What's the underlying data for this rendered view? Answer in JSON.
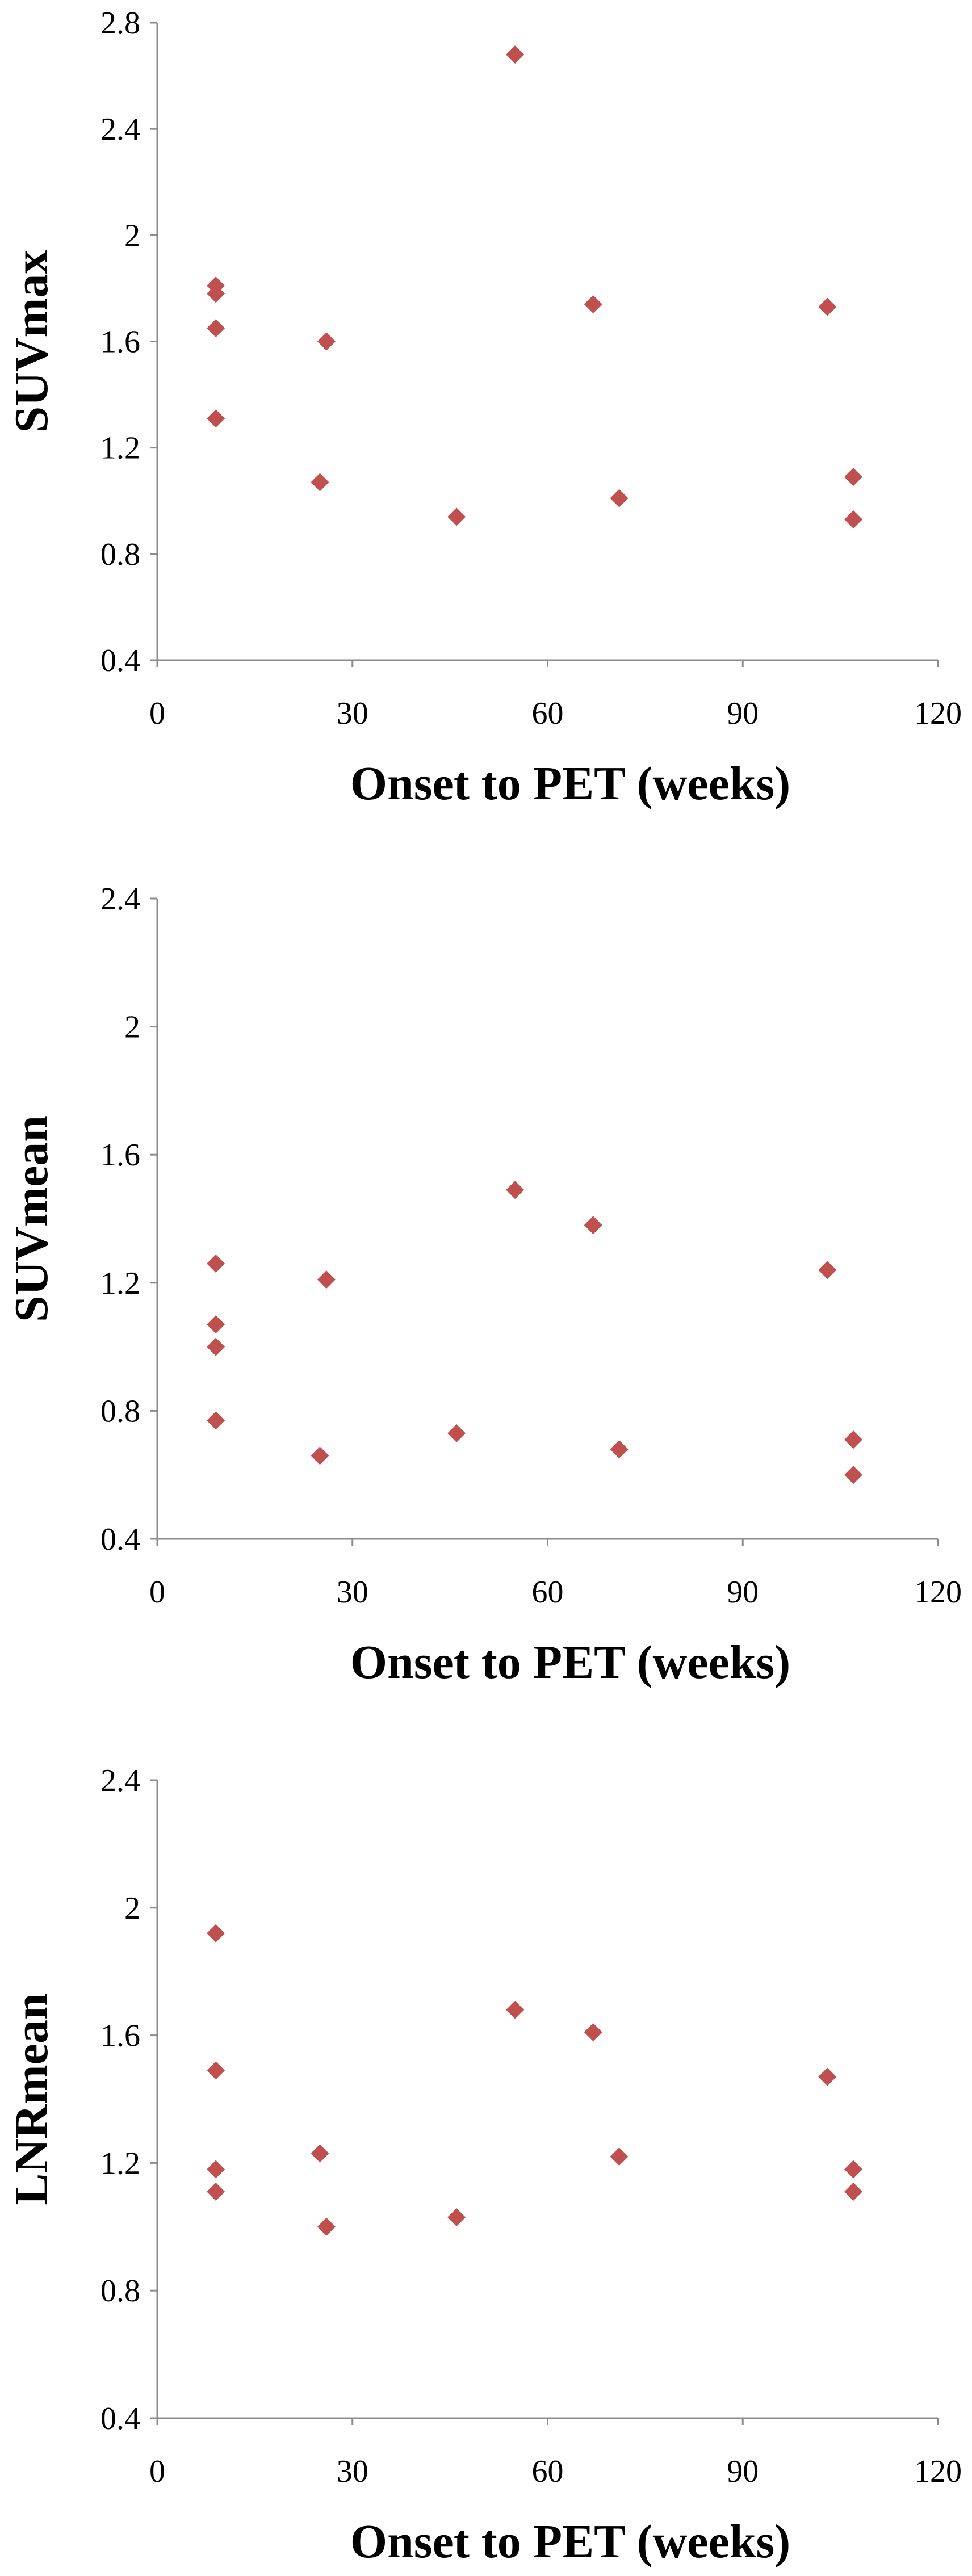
{
  "chart_data": [
    {
      "type": "scatter",
      "title": "",
      "xlabel": "Onset to PET (weeks)",
      "ylabel": "SUVmax",
      "xlim": [
        0,
        120
      ],
      "ylim": [
        0.4,
        2.8
      ],
      "xticks": [
        0,
        30,
        60,
        90,
        120
      ],
      "yticks": [
        0.4,
        0.8,
        1.2,
        1.6,
        2,
        2.4,
        2.8
      ],
      "grid": false,
      "marker_color": "#c0504d",
      "series": [
        {
          "points": [
            {
              "x": 9,
              "y": 1.81
            },
            {
              "x": 9,
              "y": 1.78
            },
            {
              "x": 9,
              "y": 1.65
            },
            {
              "x": 9,
              "y": 1.31
            },
            {
              "x": 25,
              "y": 1.07
            },
            {
              "x": 26,
              "y": 1.6
            },
            {
              "x": 46,
              "y": 0.94
            },
            {
              "x": 55,
              "y": 2.68
            },
            {
              "x": 67,
              "y": 1.74
            },
            {
              "x": 71,
              "y": 1.01
            },
            {
              "x": 103,
              "y": 1.73
            },
            {
              "x": 107,
              "y": 1.09
            },
            {
              "x": 107,
              "y": 0.93
            }
          ]
        }
      ]
    },
    {
      "type": "scatter",
      "title": "",
      "xlabel": "Onset to PET (weeks)",
      "ylabel": "SUVmean",
      "xlim": [
        0,
        120
      ],
      "ylim": [
        0.4,
        2.4
      ],
      "xticks": [
        0,
        30,
        60,
        90,
        120
      ],
      "yticks": [
        0.4,
        0.8,
        1.2,
        1.6,
        2,
        2.4
      ],
      "grid": false,
      "marker_color": "#c0504d",
      "series": [
        {
          "points": [
            {
              "x": 9,
              "y": 1.26
            },
            {
              "x": 9,
              "y": 1.07
            },
            {
              "x": 9,
              "y": 1.0
            },
            {
              "x": 9,
              "y": 0.77
            },
            {
              "x": 25,
              "y": 0.66
            },
            {
              "x": 26,
              "y": 1.21
            },
            {
              "x": 46,
              "y": 0.73
            },
            {
              "x": 55,
              "y": 1.49
            },
            {
              "x": 67,
              "y": 1.38
            },
            {
              "x": 71,
              "y": 0.68
            },
            {
              "x": 103,
              "y": 1.24
            },
            {
              "x": 107,
              "y": 0.71
            },
            {
              "x": 107,
              "y": 0.6
            }
          ]
        }
      ]
    },
    {
      "type": "scatter",
      "title": "",
      "xlabel": "Onset to PET (weeks)",
      "ylabel": "LNRmean",
      "xlim": [
        0,
        120
      ],
      "ylim": [
        0.4,
        2.4
      ],
      "xticks": [
        0,
        30,
        60,
        90,
        120
      ],
      "yticks": [
        0.4,
        0.8,
        1.2,
        1.6,
        2,
        2.4
      ],
      "grid": false,
      "marker_color": "#c0504d",
      "series": [
        {
          "points": [
            {
              "x": 9,
              "y": 1.92
            },
            {
              "x": 9,
              "y": 1.49
            },
            {
              "x": 9,
              "y": 1.18
            },
            {
              "x": 9,
              "y": 1.11
            },
            {
              "x": 25,
              "y": 1.23
            },
            {
              "x": 26,
              "y": 1.0
            },
            {
              "x": 46,
              "y": 1.03
            },
            {
              "x": 55,
              "y": 1.68
            },
            {
              "x": 67,
              "y": 1.61
            },
            {
              "x": 71,
              "y": 1.22
            },
            {
              "x": 103,
              "y": 1.47
            },
            {
              "x": 107,
              "y": 1.18
            },
            {
              "x": 107,
              "y": 1.11
            }
          ]
        }
      ]
    }
  ]
}
